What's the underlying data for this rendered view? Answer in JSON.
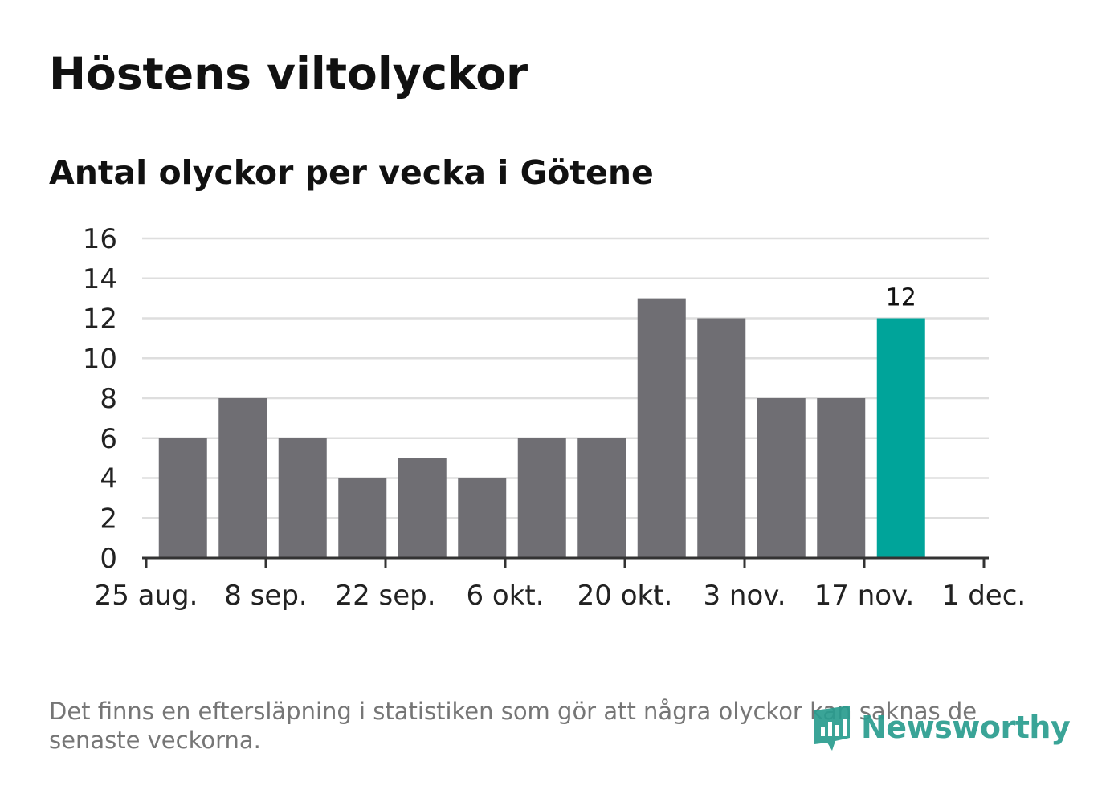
{
  "title": "Höstens viltolyckor",
  "subtitle": "Antal olyckor per vecka i Götene",
  "footnote": "Det finns en eftersläpning i statistiken som gör att några olyckor kan saknas de senaste veckorna.",
  "logo": {
    "text": "Newsworthy"
  },
  "colors": {
    "bar": "#6f6e73",
    "highlight": "#00a49a",
    "grid": "#dedede",
    "axis": "#333333"
  },
  "chart_data": {
    "type": "bar",
    "title": "Höstens viltolyckor",
    "subtitle": "Antal olyckor per vecka i Götene",
    "x_tick_labels": [
      "25 aug.",
      "8 sep.",
      "22 sep.",
      "6 okt.",
      "20 okt.",
      "3 nov.",
      "17 nov.",
      "1 dec."
    ],
    "y_ticks": [
      0,
      2,
      4,
      6,
      8,
      10,
      12,
      14,
      16
    ],
    "ylim": [
      0,
      16
    ],
    "grid": true,
    "values": [
      6,
      8,
      6,
      4,
      5,
      4,
      6,
      6,
      13,
      12,
      8,
      8,
      12
    ],
    "highlight_index": 12,
    "labeled_value": "12"
  }
}
